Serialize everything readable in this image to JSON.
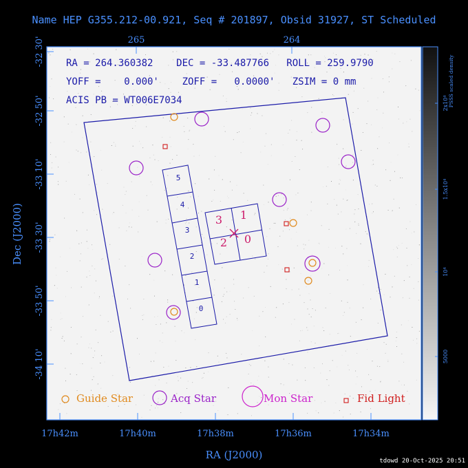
{
  "title": "Name HEP G355.212-00.921, Seq # 201897, Obsid 31927, ST Scheduled",
  "colors": {
    "axis": "#4a90ff",
    "title": "#4a90ff",
    "field": "#1a1aa8",
    "guide": "#e08a1e",
    "acq": "#9a22c8",
    "mon": "#cc22cc",
    "fid": "#d01c1c",
    "chipLabel": "#1a1aa8",
    "acisLabel": "#cc1a6a",
    "background": "#f3f3f3"
  },
  "info": {
    "line1": "RA = 264.360382    DEC = -33.487766   ROLL = 259.9790",
    "line2": "YOFF =    0.000'    ZOFF =   0.0000'   ZSIM = 0 mm",
    "line3": "ACIS PB = WT006E7034"
  },
  "axes": {
    "xlabel": "RA (J2000)",
    "ylabel": "Dec (J2000)",
    "xticks_bottom": [
      "17h42m",
      "17h40m",
      "17h38m",
      "17h36m",
      "17h34m"
    ],
    "xticks_top": [
      "265",
      "264"
    ],
    "yticks": [
      "-32 30'",
      "-32 50'",
      "-33 10'",
      "-33 30'",
      "-33 50'",
      "-34 10'"
    ]
  },
  "colorbar": {
    "title_line1": "PSSS scaled density",
    "ticks": [
      "2x10⁴",
      "1.5x10⁴",
      "10⁴",
      "5000"
    ]
  },
  "chips": {
    "aciss": [
      "5",
      "4",
      "3",
      "2",
      "1",
      "0"
    ],
    "acisi": [
      "3",
      "1",
      "2",
      "0"
    ]
  },
  "legend": {
    "guide": "Guide Star",
    "acq": "Acq Star",
    "mon": "Mon Star",
    "fid": "Fid Light"
  },
  "footer": "tdowd 20-Oct-2025 20:51"
}
